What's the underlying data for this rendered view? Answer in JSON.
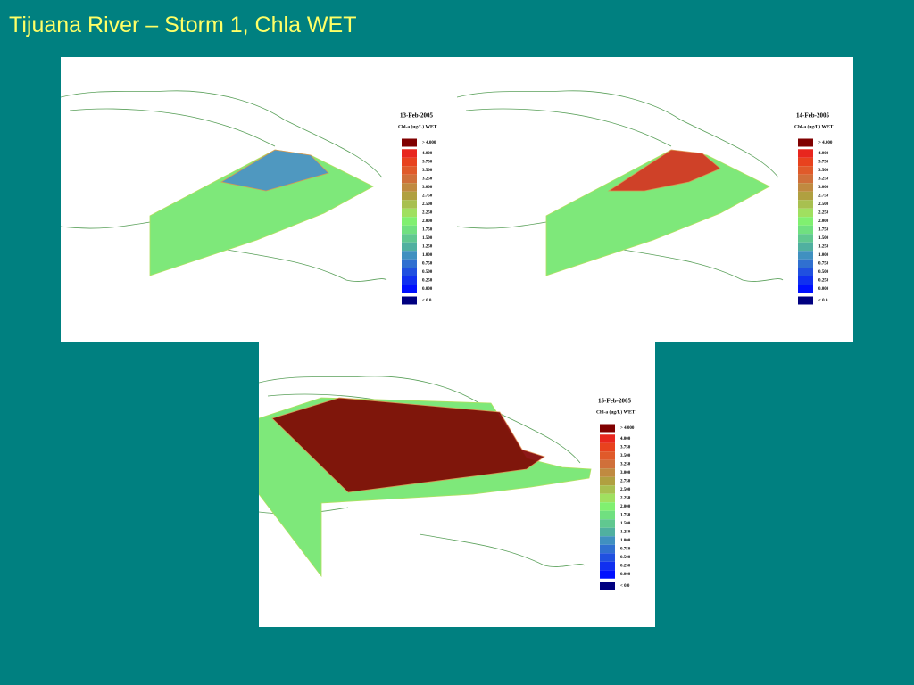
{
  "title": "Tijuana River – Storm 1, Chla WET",
  "panels": [
    {
      "date": "13-Feb-2005",
      "legend_title": "Chl-a (ug/L) WET",
      "legend": [
        "> 4.000",
        "4.000",
        "3.750",
        "3.500",
        "3.250",
        "3.000",
        "2.750",
        "2.500",
        "2.250",
        "2.000",
        "1.750",
        "1.500",
        "1.250",
        "1.000",
        "0.750",
        "0.500",
        "0.250",
        "0.000",
        "< 0.0"
      ]
    },
    {
      "date": "14-Feb-2005",
      "legend_title": "Chl-a (ug/L) WET",
      "legend": [
        "> 4.000",
        "4.000",
        "3.750",
        "3.500",
        "3.250",
        "3.000",
        "2.750",
        "2.500",
        "2.250",
        "2.000",
        "1.750",
        "1.500",
        "1.250",
        "1.000",
        "0.750",
        "0.500",
        "0.250",
        "0.000",
        "< 0.0"
      ]
    },
    {
      "date": "15-Feb-2005",
      "legend_title": "Chl-a (ug/L) WET",
      "legend": [
        "> 4.000",
        "4.000",
        "3.750",
        "3.500",
        "3.250",
        "3.000",
        "2.750",
        "2.500",
        "2.250",
        "2.000",
        "1.750",
        "1.500",
        "1.250",
        "1.000",
        "0.750",
        "0.500",
        "0.250",
        "0.000",
        "< 0.0"
      ]
    }
  ]
}
